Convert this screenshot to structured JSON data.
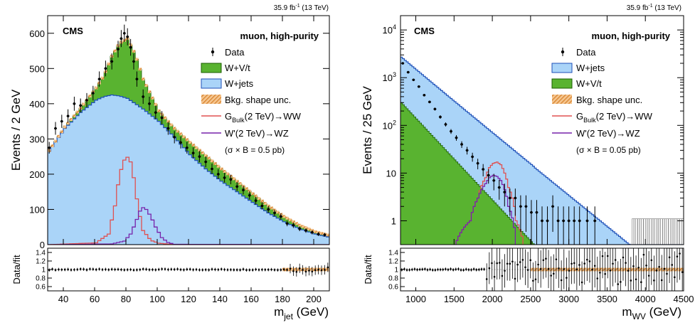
{
  "chart_data": [
    {
      "type": "area",
      "lumi_label": "35.9 fb",
      "lumi_sup": "-1",
      "lumi_tail": " (13 TeV)",
      "experiment": "CMS",
      "category": "muon, high-purity",
      "ylabel": "Events / 2 GeV",
      "xlabel_main": "m",
      "xlabel_sub": "jet",
      "xlabel_unit": " (GeV)",
      "ratio_ylabel": "Data/fit",
      "xlim": [
        30,
        210
      ],
      "ylim": [
        0,
        650
      ],
      "x_ticks": [
        40,
        60,
        80,
        100,
        120,
        140,
        160,
        180,
        200
      ],
      "y_ticks": [
        0,
        100,
        200,
        300,
        400,
        500,
        600
      ],
      "ratio_ylim": [
        0.5,
        1.5
      ],
      "ratio_ticks": [
        0.6,
        0.8,
        1,
        1.2,
        1.4
      ],
      "legend": {
        "data": "Data",
        "first": "W+V/t",
        "second": "W+jets",
        "unc": "Bkg. shape unc.",
        "sig1_main": "G",
        "sig1_sub": "Bulk",
        "sig1_tail": "(2 TeV)→WW",
        "sig2": "W'(2 TeV)→WZ",
        "xsec": "(σ × B = 0.5 pb)"
      },
      "series": [
        {
          "name": "W+jets",
          "color": "#aad4f8",
          "x": [
            30,
            40,
            50,
            60,
            65,
            70,
            75,
            80,
            85,
            90,
            100,
            110,
            120,
            130,
            140,
            150,
            160,
            170,
            180,
            190,
            200,
            210
          ],
          "values": [
            265,
            330,
            375,
            410,
            420,
            425,
            422,
            415,
            400,
            385,
            350,
            305,
            255,
            215,
            180,
            150,
            120,
            90,
            65,
            45,
            30,
            20
          ]
        },
        {
          "name": "W+V/t",
          "color": "#59b330",
          "x": [
            30,
            40,
            50,
            60,
            65,
            70,
            75,
            80,
            85,
            90,
            100,
            110,
            120,
            130,
            140,
            150,
            160,
            170,
            180,
            190,
            200,
            210
          ],
          "values": [
            2,
            4,
            12,
            35,
            60,
            110,
            150,
            170,
            140,
            85,
            30,
            25,
            35,
            38,
            35,
            30,
            25,
            20,
            15,
            10,
            7,
            5
          ]
        },
        {
          "name": "G_Bulk(2 TeV)->WW",
          "color": "#e05050",
          "x": [
            30,
            60,
            68,
            72,
            75,
            78,
            80,
            82,
            84,
            86,
            88,
            90,
            95,
            100,
            110,
            210
          ],
          "values": [
            0,
            5,
            30,
            110,
            200,
            240,
            248,
            235,
            190,
            130,
            80,
            40,
            12,
            4,
            0,
            0
          ]
        },
        {
          "name": "W'(2 TeV)->WZ",
          "color": "#7722aa",
          "x": [
            30,
            70,
            78,
            82,
            85,
            88,
            90,
            92,
            95,
            98,
            102,
            106,
            110,
            210
          ],
          "values": [
            0,
            2,
            10,
            30,
            60,
            95,
            105,
            100,
            80,
            50,
            20,
            6,
            1,
            0
          ]
        }
      ],
      "data_points": {
        "x": [
          31,
          35,
          39,
          43,
          47,
          51,
          55,
          59,
          63,
          67,
          71,
          75,
          77,
          79,
          81,
          83,
          85,
          87,
          91,
          95,
          99,
          103,
          107,
          111,
          115,
          119,
          123,
          127,
          131,
          135,
          139,
          143,
          147,
          151,
          155,
          159,
          163,
          167,
          171,
          175,
          179,
          183,
          187,
          191,
          195,
          199,
          203,
          207
        ],
        "values": [
          275,
          330,
          350,
          365,
          400,
          395,
          410,
          430,
          470,
          500,
          520,
          555,
          585,
          600,
          590,
          560,
          520,
          470,
          420,
          400,
          375,
          360,
          330,
          305,
          290,
          275,
          260,
          250,
          235,
          215,
          200,
          190,
          185,
          165,
          155,
          140,
          125,
          110,
          100,
          90,
          80,
          60,
          55,
          45,
          40,
          35,
          30,
          28
        ]
      }
    },
    {
      "type": "area",
      "lumi_label": "35.9 fb",
      "lumi_sup": "-1",
      "lumi_tail": " (13 TeV)",
      "experiment": "CMS",
      "category": "muon, high-purity",
      "ylabel": "Events / 25 GeV",
      "xlabel_main": "m",
      "xlabel_sub": "WV",
      "xlabel_unit": " (GeV)",
      "ratio_ylabel": "Data/fit",
      "log_y": true,
      "xlim": [
        800,
        4500
      ],
      "ylim_log10": [
        -0.5,
        4.3
      ],
      "x_ticks": [
        1000,
        1500,
        2000,
        2500,
        3000,
        3500,
        4000,
        4500
      ],
      "y_ticks": [
        {
          "exp": 0,
          "label": "1"
        },
        {
          "exp": 1,
          "label": "10"
        },
        {
          "exp": 2,
          "label": "10",
          "sup": "2"
        },
        {
          "exp": 3,
          "label": "10",
          "sup": "3"
        },
        {
          "exp": 4,
          "label": "10",
          "sup": "4"
        }
      ],
      "ratio_ylim": [
        0.5,
        1.5
      ],
      "ratio_ticks": [
        0.6,
        0.8,
        1,
        1.2,
        1.4
      ],
      "legend": {
        "data": "Data",
        "first": "W+jets",
        "second": "W+V/t",
        "unc": "Bkg. shape unc.",
        "sig1_main": "G",
        "sig1_sub": "Bulk",
        "sig1_tail": "(2 TeV)→WW",
        "sig2": "W'(2 TeV)→WZ",
        "xsec": "(σ × B = 0.05 pb)"
      },
      "series": [
        {
          "name": "W+jets",
          "color": "#aad4f8",
          "x": [
            800,
            3800
          ],
          "values": [
            2400,
            0.3
          ]
        },
        {
          "name": "W+V/t",
          "color": "#59b330",
          "x": [
            800,
            2550
          ],
          "values": [
            300,
            0.3
          ]
        },
        {
          "name": "G_Bulk(2 TeV)->WW",
          "color": "#e05050",
          "x": [
            1500,
            1700,
            1800,
            1900,
            1950,
            2000,
            2050,
            2100,
            2150,
            2200,
            2300,
            2400
          ],
          "values": [
            0.3,
            1,
            3,
            8,
            13,
            16,
            17,
            15,
            10,
            5,
            1,
            0.3
          ]
        },
        {
          "name": "W'(2 TeV)->WZ",
          "color": "#7722aa",
          "x": [
            1500,
            1700,
            1800,
            1900,
            1950,
            2000,
            2050,
            2100,
            2150,
            2200,
            2300
          ],
          "values": [
            0.3,
            1,
            3,
            6,
            8,
            9,
            8.5,
            7,
            4.5,
            2,
            0.3
          ]
        }
      ],
      "data_points": {
        "x": [
          830,
          900,
          970,
          1040,
          1110,
          1180,
          1250,
          1320,
          1390,
          1460,
          1530,
          1600,
          1670,
          1740,
          1810,
          1880,
          1950,
          2020,
          2090,
          2160,
          2230,
          2300,
          2370,
          2440,
          2510,
          2580,
          2650,
          2720,
          2790,
          2860,
          2930,
          3000,
          3070,
          3140,
          3240,
          3340
        ],
        "values": [
          2000,
          1300,
          900,
          650,
          430,
          310,
          220,
          150,
          105,
          75,
          55,
          40,
          30,
          22,
          16,
          12,
          9,
          7,
          5,
          4,
          3,
          3,
          2,
          2,
          1.5,
          1.5,
          1,
          1,
          2,
          1,
          1,
          1,
          1,
          1,
          1,
          1
        ]
      }
    }
  ]
}
